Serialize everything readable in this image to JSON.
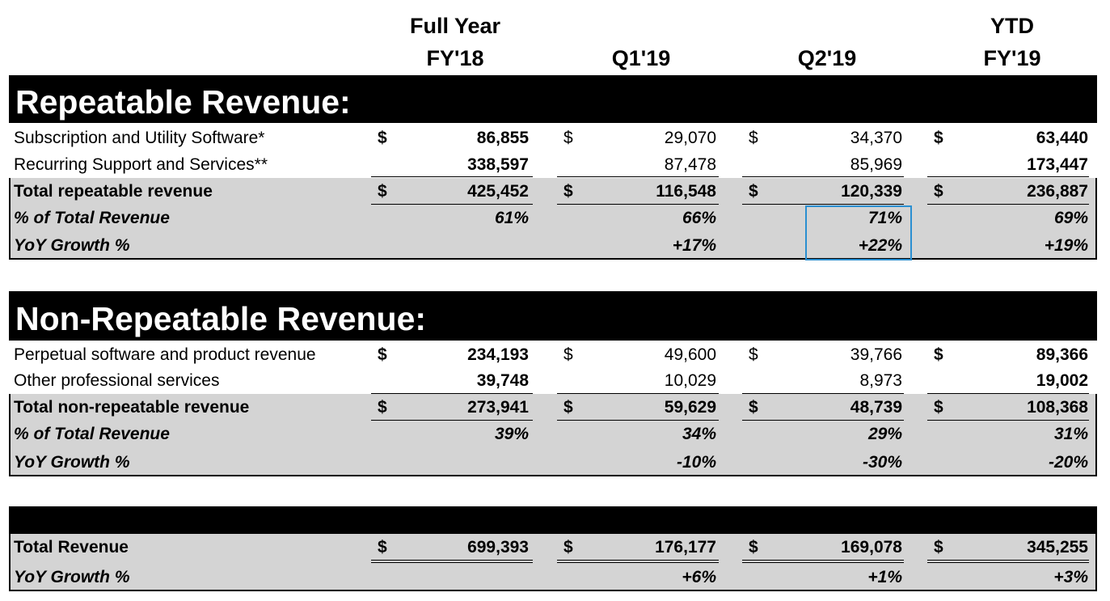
{
  "columns": {
    "fy18_line1": "Full Year",
    "fy18_line2": "FY'18",
    "q1": "Q1'19",
    "q2": "Q2'19",
    "ytd_line1": "YTD",
    "ytd_line2": "FY'19"
  },
  "currency_symbol": "$",
  "repeatable": {
    "title": "Repeatable Revenue:",
    "subscription": {
      "label": "Subscription and Utility Software*",
      "fy18": "86,855",
      "q1": "29,070",
      "q2": "34,370",
      "ytd": "63,440"
    },
    "recurring": {
      "label": "Recurring Support and Services**",
      "fy18": "338,597",
      "q1": "87,478",
      "q2": "85,969",
      "ytd": "173,447"
    },
    "total": {
      "label": "Total repeatable revenue",
      "fy18": "425,452",
      "q1": "116,548",
      "q2": "120,339",
      "ytd": "236,887"
    },
    "pct": {
      "label": "% of Total Revenue",
      "fy18": "61%",
      "q1": "66%",
      "q2": "71%",
      "ytd": "69%"
    },
    "yoy": {
      "label": "YoY Growth %",
      "fy18": "",
      "q1": "+17%",
      "q2": "+22%",
      "ytd": "+19%"
    }
  },
  "nonrepeatable": {
    "title": "Non-Repeatable Revenue:",
    "perpetual": {
      "label": "Perpetual software and product revenue",
      "fy18": "234,193",
      "q1": "49,600",
      "q2": "39,766",
      "ytd": "89,366"
    },
    "other": {
      "label": "Other professional services",
      "fy18": "39,748",
      "q1": "10,029",
      "q2": "8,973",
      "ytd": "19,002"
    },
    "total": {
      "label": "Total non-repeatable revenue",
      "fy18": "273,941",
      "q1": "59,629",
      "q2": "48,739",
      "ytd": "108,368"
    },
    "pct": {
      "label": "% of Total Revenue",
      "fy18": "39%",
      "q1": "34%",
      "q2": "29%",
      "ytd": "31%"
    },
    "yoy": {
      "label": "YoY Growth %",
      "fy18": "",
      "q1": "-10%",
      "q2": "-30%",
      "ytd": "-20%"
    }
  },
  "total": {
    "total": {
      "label": "Total Revenue",
      "fy18": "699,393",
      "q1": "176,177",
      "q2": "169,078",
      "ytd": "345,255"
    },
    "yoy": {
      "label": "YoY Growth %",
      "fy18": "",
      "q1": "+6%",
      "q2": "+1%",
      "ytd": "+3%"
    }
  }
}
